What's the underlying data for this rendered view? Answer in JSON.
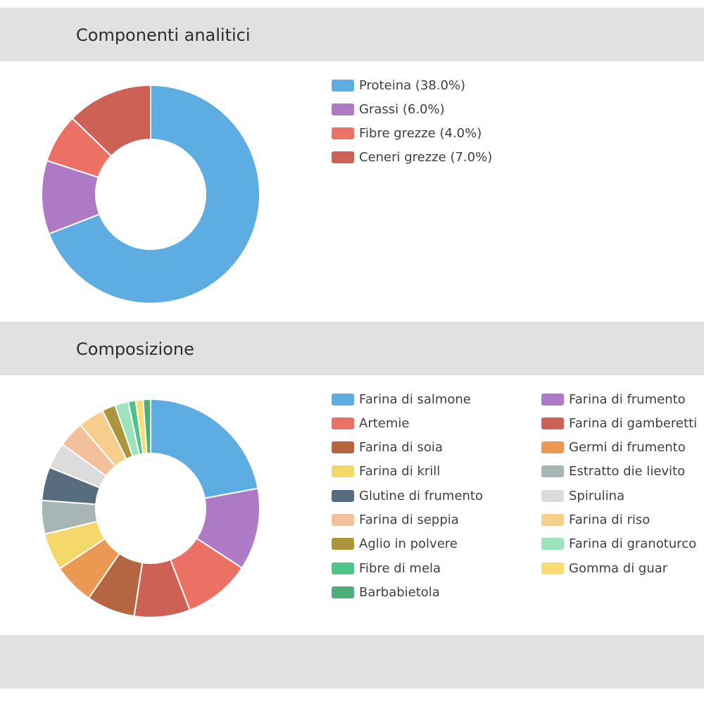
{
  "sections": [
    {
      "title": "Componenti analitici",
      "chart_data": {
        "type": "pie",
        "style": "donut",
        "title": "Componenti analitici",
        "labels": [
          "Proteina (38.0%)",
          "Grassi (6.0%)",
          "Fibre grezze (4.0%)",
          "Ceneri grezze (7.0%)"
        ],
        "categories": [
          "Proteina",
          "Grassi",
          "Fibre grezze",
          "Ceneri grezze"
        ],
        "values": [
          38.0,
          6.0,
          4.0,
          7.0
        ],
        "colors": [
          "#5dade2",
          "#af7ac5",
          "#ec7063",
          "#cd6155"
        ],
        "legend": "right"
      }
    },
    {
      "title": "Composizione",
      "chart_data": {
        "type": "pie",
        "style": "donut",
        "title": "Composizione",
        "labels": [
          "Farina di salmone",
          "Farina di frumento",
          "Artemie",
          "Farina di gamberetti",
          "Farina di soia",
          "Germi di frumento",
          "Farina di krill",
          "Estratto die lievito",
          "Glutine di frumento",
          "Spirulina",
          "Farina di seppia",
          "Farina di riso",
          "Aglio in polvere",
          "Farina di granoturco",
          "Fibre di mela",
          "Gomma di guar",
          "Barbabietola"
        ],
        "values": [
          20,
          11,
          9,
          7.5,
          6.5,
          5.5,
          5,
          4.5,
          4.5,
          3.5,
          3.5,
          3.5,
          1.8,
          1.8,
          1.0,
          1.0,
          1.0
        ],
        "colors": [
          "#5dade2",
          "#af7ac5",
          "#ec7063",
          "#cd6155",
          "#b5653f",
          "#eb9952",
          "#f4d86a",
          "#a8b5b5",
          "#586c80",
          "#dcdcdc",
          "#f2c09a",
          "#f7cf8d",
          "#ab943a",
          "#9fe3be",
          "#4fc488",
          "#fbdc72",
          "#4caf79"
        ],
        "legend": "right"
      }
    }
  ]
}
